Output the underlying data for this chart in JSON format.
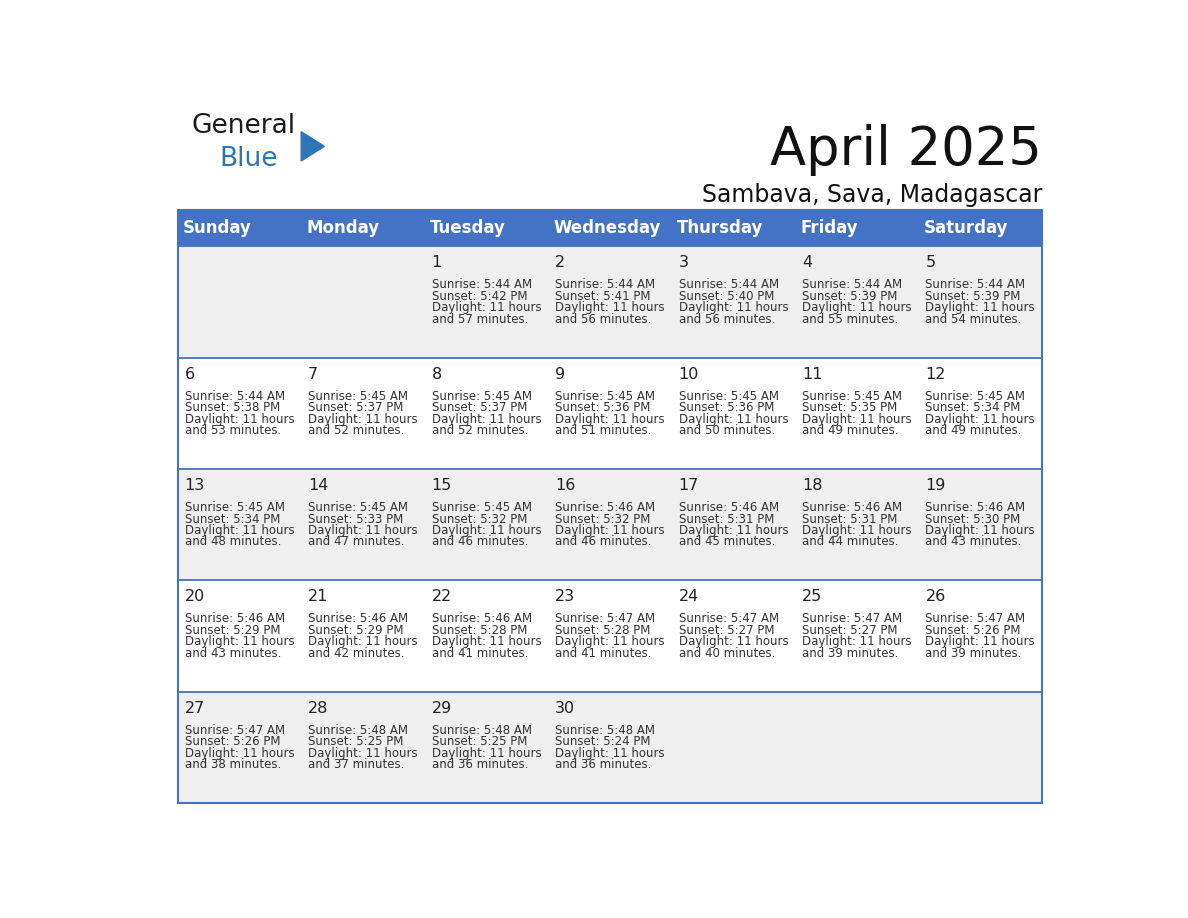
{
  "title": "April 2025",
  "subtitle": "Sambava, Sava, Madagascar",
  "days_of_week": [
    "Sunday",
    "Monday",
    "Tuesday",
    "Wednesday",
    "Thursday",
    "Friday",
    "Saturday"
  ],
  "header_bg": "#4472C4",
  "header_text": "#FFFFFF",
  "cell_bg_odd": "#EFEFEF",
  "cell_bg_even": "#FFFFFF",
  "cell_text": "#333333",
  "border_color": "#4472C4",
  "logo_general_color": "#1a1a1a",
  "logo_blue_color": "#2E75B6",
  "calendar_data": [
    [
      null,
      null,
      {
        "day": 1,
        "sunrise": "5:44 AM",
        "sunset": "5:42 PM",
        "daylight_l1": "Daylight: 11 hours",
        "daylight_l2": "and 57 minutes."
      },
      {
        "day": 2,
        "sunrise": "5:44 AM",
        "sunset": "5:41 PM",
        "daylight_l1": "Daylight: 11 hours",
        "daylight_l2": "and 56 minutes."
      },
      {
        "day": 3,
        "sunrise": "5:44 AM",
        "sunset": "5:40 PM",
        "daylight_l1": "Daylight: 11 hours",
        "daylight_l2": "and 56 minutes."
      },
      {
        "day": 4,
        "sunrise": "5:44 AM",
        "sunset": "5:39 PM",
        "daylight_l1": "Daylight: 11 hours",
        "daylight_l2": "and 55 minutes."
      },
      {
        "day": 5,
        "sunrise": "5:44 AM",
        "sunset": "5:39 PM",
        "daylight_l1": "Daylight: 11 hours",
        "daylight_l2": "and 54 minutes."
      }
    ],
    [
      {
        "day": 6,
        "sunrise": "5:44 AM",
        "sunset": "5:38 PM",
        "daylight_l1": "Daylight: 11 hours",
        "daylight_l2": "and 53 minutes."
      },
      {
        "day": 7,
        "sunrise": "5:45 AM",
        "sunset": "5:37 PM",
        "daylight_l1": "Daylight: 11 hours",
        "daylight_l2": "and 52 minutes."
      },
      {
        "day": 8,
        "sunrise": "5:45 AM",
        "sunset": "5:37 PM",
        "daylight_l1": "Daylight: 11 hours",
        "daylight_l2": "and 52 minutes."
      },
      {
        "day": 9,
        "sunrise": "5:45 AM",
        "sunset": "5:36 PM",
        "daylight_l1": "Daylight: 11 hours",
        "daylight_l2": "and 51 minutes."
      },
      {
        "day": 10,
        "sunrise": "5:45 AM",
        "sunset": "5:36 PM",
        "daylight_l1": "Daylight: 11 hours",
        "daylight_l2": "and 50 minutes."
      },
      {
        "day": 11,
        "sunrise": "5:45 AM",
        "sunset": "5:35 PM",
        "daylight_l1": "Daylight: 11 hours",
        "daylight_l2": "and 49 minutes."
      },
      {
        "day": 12,
        "sunrise": "5:45 AM",
        "sunset": "5:34 PM",
        "daylight_l1": "Daylight: 11 hours",
        "daylight_l2": "and 49 minutes."
      }
    ],
    [
      {
        "day": 13,
        "sunrise": "5:45 AM",
        "sunset": "5:34 PM",
        "daylight_l1": "Daylight: 11 hours",
        "daylight_l2": "and 48 minutes."
      },
      {
        "day": 14,
        "sunrise": "5:45 AM",
        "sunset": "5:33 PM",
        "daylight_l1": "Daylight: 11 hours",
        "daylight_l2": "and 47 minutes."
      },
      {
        "day": 15,
        "sunrise": "5:45 AM",
        "sunset": "5:32 PM",
        "daylight_l1": "Daylight: 11 hours",
        "daylight_l2": "and 46 minutes."
      },
      {
        "day": 16,
        "sunrise": "5:46 AM",
        "sunset": "5:32 PM",
        "daylight_l1": "Daylight: 11 hours",
        "daylight_l2": "and 46 minutes."
      },
      {
        "day": 17,
        "sunrise": "5:46 AM",
        "sunset": "5:31 PM",
        "daylight_l1": "Daylight: 11 hours",
        "daylight_l2": "and 45 minutes."
      },
      {
        "day": 18,
        "sunrise": "5:46 AM",
        "sunset": "5:31 PM",
        "daylight_l1": "Daylight: 11 hours",
        "daylight_l2": "and 44 minutes."
      },
      {
        "day": 19,
        "sunrise": "5:46 AM",
        "sunset": "5:30 PM",
        "daylight_l1": "Daylight: 11 hours",
        "daylight_l2": "and 43 minutes."
      }
    ],
    [
      {
        "day": 20,
        "sunrise": "5:46 AM",
        "sunset": "5:29 PM",
        "daylight_l1": "Daylight: 11 hours",
        "daylight_l2": "and 43 minutes."
      },
      {
        "day": 21,
        "sunrise": "5:46 AM",
        "sunset": "5:29 PM",
        "daylight_l1": "Daylight: 11 hours",
        "daylight_l2": "and 42 minutes."
      },
      {
        "day": 22,
        "sunrise": "5:46 AM",
        "sunset": "5:28 PM",
        "daylight_l1": "Daylight: 11 hours",
        "daylight_l2": "and 41 minutes."
      },
      {
        "day": 23,
        "sunrise": "5:47 AM",
        "sunset": "5:28 PM",
        "daylight_l1": "Daylight: 11 hours",
        "daylight_l2": "and 41 minutes."
      },
      {
        "day": 24,
        "sunrise": "5:47 AM",
        "sunset": "5:27 PM",
        "daylight_l1": "Daylight: 11 hours",
        "daylight_l2": "and 40 minutes."
      },
      {
        "day": 25,
        "sunrise": "5:47 AM",
        "sunset": "5:27 PM",
        "daylight_l1": "Daylight: 11 hours",
        "daylight_l2": "and 39 minutes."
      },
      {
        "day": 26,
        "sunrise": "5:47 AM",
        "sunset": "5:26 PM",
        "daylight_l1": "Daylight: 11 hours",
        "daylight_l2": "and 39 minutes."
      }
    ],
    [
      {
        "day": 27,
        "sunrise": "5:47 AM",
        "sunset": "5:26 PM",
        "daylight_l1": "Daylight: 11 hours",
        "daylight_l2": "and 38 minutes."
      },
      {
        "day": 28,
        "sunrise": "5:48 AM",
        "sunset": "5:25 PM",
        "daylight_l1": "Daylight: 11 hours",
        "daylight_l2": "and 37 minutes."
      },
      {
        "day": 29,
        "sunrise": "5:48 AM",
        "sunset": "5:25 PM",
        "daylight_l1": "Daylight: 11 hours",
        "daylight_l2": "and 36 minutes."
      },
      {
        "day": 30,
        "sunrise": "5:48 AM",
        "sunset": "5:24 PM",
        "daylight_l1": "Daylight: 11 hours",
        "daylight_l2": "and 36 minutes."
      },
      null,
      null,
      null
    ]
  ]
}
